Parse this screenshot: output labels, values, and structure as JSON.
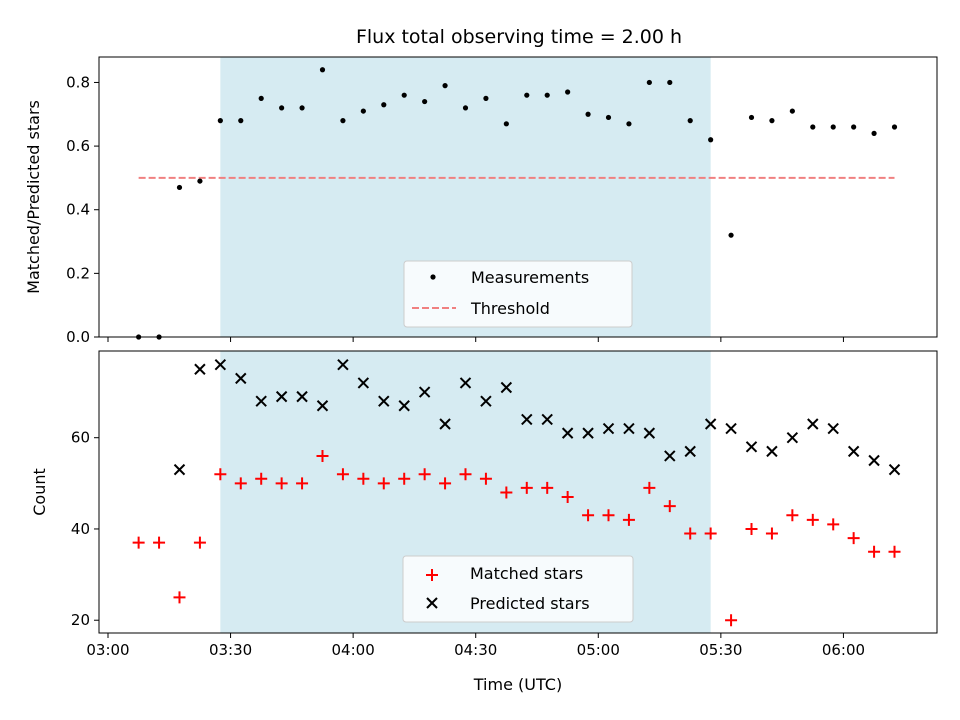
{
  "chart_data": {
    "title": "Flux total observing time = 2.00 h",
    "xlabel": "Time (UTC)",
    "x_ticks": [
      "03:00",
      "03:30",
      "04:00",
      "04:30",
      "05:00",
      "05:30",
      "06:00"
    ],
    "x_tick_minutes": [
      180,
      210,
      240,
      270,
      300,
      330,
      360
    ],
    "xlim_minutes": [
      177.8,
      382.9
    ],
    "shaded_interval_minutes": [
      207.5,
      327.5
    ],
    "colors": {
      "shade": "#add8e6",
      "threshold": "#f08080",
      "matched": "#ff0000",
      "predicted": "#000000",
      "measurements": "#000000"
    },
    "panels": [
      {
        "type": "scatter",
        "ylabel": "Matched/Predicted stars",
        "ylim": [
          0,
          0.88
        ],
        "y_ticks": [
          0.0,
          0.2,
          0.4,
          0.6,
          0.8
        ],
        "y_tick_labels": [
          "0.0",
          "0.2",
          "0.4",
          "0.6",
          "0.8"
        ],
        "legend": {
          "position": "lower-center",
          "entries": [
            "Measurements",
            "Threshold"
          ]
        },
        "threshold": {
          "name": "Threshold",
          "value": 0.5,
          "x_range_minutes": [
            187.5,
            372.5
          ]
        },
        "series": [
          {
            "name": "Measurements",
            "x_minutes": [
              187.5,
              192.5,
              197.5,
              202.5,
              207.5,
              212.5,
              217.5,
              222.5,
              227.5,
              232.5,
              237.5,
              242.5,
              247.5,
              252.5,
              257.5,
              262.5,
              267.5,
              272.5,
              277.5,
              282.5,
              287.5,
              292.5,
              297.5,
              302.5,
              307.5,
              312.5,
              317.5,
              322.5,
              327.5,
              332.5,
              337.5,
              342.5,
              347.5,
              352.5,
              357.5,
              362.5,
              367.5,
              372.5
            ],
            "y": [
              0.0,
              0.0,
              0.47,
              0.49,
              0.68,
              0.68,
              0.75,
              0.72,
              0.72,
              0.84,
              0.68,
              0.71,
              0.73,
              0.76,
              0.74,
              0.79,
              0.72,
              0.75,
              0.67,
              0.76,
              0.76,
              0.77,
              0.7,
              0.69,
              0.67,
              0.8,
              0.8,
              0.68,
              0.62,
              0.32,
              0.69,
              0.68,
              0.71,
              0.66,
              0.66,
              0.66,
              0.64,
              0.66
            ]
          }
        ]
      },
      {
        "type": "scatter",
        "ylabel": "Count",
        "ylim": [
          17.2,
          79
        ],
        "y_ticks": [
          20,
          40,
          60
        ],
        "y_tick_labels": [
          "20",
          "40",
          "60"
        ],
        "legend": {
          "position": "lower-center",
          "entries": [
            "Matched stars",
            "Predicted stars"
          ]
        },
        "series": [
          {
            "name": "Matched stars",
            "marker": "plus",
            "x_minutes": [
              187.5,
              192.5,
              197.5,
              202.5,
              207.5,
              212.5,
              217.5,
              222.5,
              227.5,
              232.5,
              237.5,
              242.5,
              247.5,
              252.5,
              257.5,
              262.5,
              267.5,
              272.5,
              277.5,
              282.5,
              287.5,
              292.5,
              297.5,
              302.5,
              307.5,
              312.5,
              317.5,
              322.5,
              327.5,
              332.5,
              337.5,
              342.5,
              347.5,
              352.5,
              357.5,
              362.5,
              367.5,
              372.5
            ],
            "y": [
              37,
              37,
              25,
              37,
              52,
              50,
              51,
              50,
              50,
              56,
              52,
              51,
              50,
              51,
              52,
              50,
              52,
              51,
              48,
              49,
              49,
              47,
              43,
              43,
              42,
              49,
              45,
              39,
              39,
              20,
              40,
              39,
              43,
              42,
              41,
              38,
              35,
              35
            ]
          },
          {
            "name": "Predicted stars",
            "marker": "x",
            "x_minutes": [
              197.5,
              202.5,
              207.5,
              212.5,
              217.5,
              222.5,
              227.5,
              232.5,
              237.5,
              242.5,
              247.5,
              252.5,
              257.5,
              262.5,
              267.5,
              272.5,
              277.5,
              282.5,
              287.5,
              292.5,
              297.5,
              302.5,
              307.5,
              312.5,
              317.5,
              322.5,
              327.5,
              332.5,
              337.5,
              342.5,
              347.5,
              352.5,
              357.5,
              362.5,
              367.5,
              372.5
            ],
            "y": [
              53,
              75,
              76,
              73,
              68,
              69,
              69,
              67,
              76,
              72,
              68,
              67,
              70,
              63,
              72,
              68,
              71,
              64,
              64,
              61,
              61,
              62,
              62,
              61,
              56,
              57,
              63,
              62,
              58,
              57,
              60,
              63,
              62,
              57,
              55,
              53
            ]
          }
        ]
      }
    ]
  }
}
